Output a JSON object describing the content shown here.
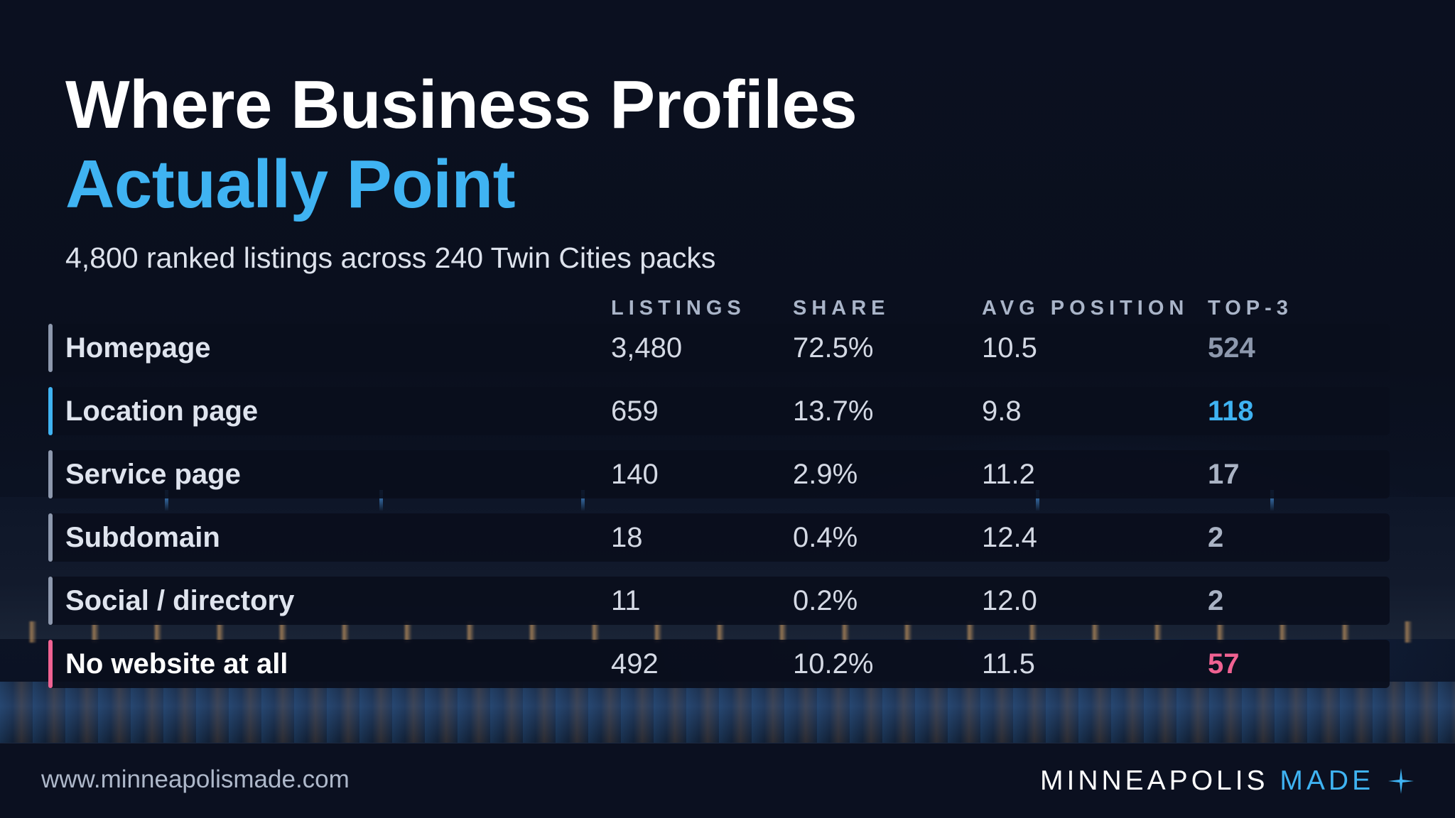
{
  "title": {
    "line1": "Where Business Profiles",
    "line2": "Actually Point"
  },
  "subtitle": "4,800 ranked listings across 240 Twin Cities packs",
  "columns": {
    "listings": "LISTINGS",
    "share": "SHARE",
    "avg_position": "AVG POSITION",
    "top3": "TOP-3"
  },
  "rows": [
    {
      "label": "Homepage",
      "listings": "3,480",
      "share": "72.5%",
      "avg_position": "10.5",
      "top3": "524",
      "accent": "#8d98ad",
      "top3_color": "#8d98ad"
    },
    {
      "label": "Location page",
      "listings": "659",
      "share": "13.7%",
      "avg_position": "9.8",
      "top3": "118",
      "accent": "#3fb3f2",
      "top3_color": "#3fb3f2"
    },
    {
      "label": "Service page",
      "listings": "140",
      "share": "2.9%",
      "avg_position": "11.2",
      "top3": "17",
      "accent": "#8d98ad",
      "top3_color": "#aab3c4"
    },
    {
      "label": "Subdomain",
      "listings": "18",
      "share": "0.4%",
      "avg_position": "12.4",
      "top3": "2",
      "accent": "#8d98ad",
      "top3_color": "#aab3c4"
    },
    {
      "label": "Social / directory",
      "listings": "11",
      "share": "0.2%",
      "avg_position": "12.0",
      "top3": "2",
      "accent": "#8d98ad",
      "top3_color": "#aab3c4"
    },
    {
      "label": "No website at all",
      "listings": "492",
      "share": "10.2%",
      "avg_position": "11.5",
      "top3": "57",
      "accent": "#f06292",
      "top3_color": "#f06292"
    }
  ],
  "footer": {
    "url": "www.minneapolismade.com",
    "brand_main": "MINNEAPOLIS",
    "brand_accent": "MADE",
    "brand_icon": "sparkle-icon"
  },
  "colors": {
    "accent_blue": "#3fb3f2",
    "accent_pink": "#f06292",
    "background": "#0a0e1a"
  }
}
